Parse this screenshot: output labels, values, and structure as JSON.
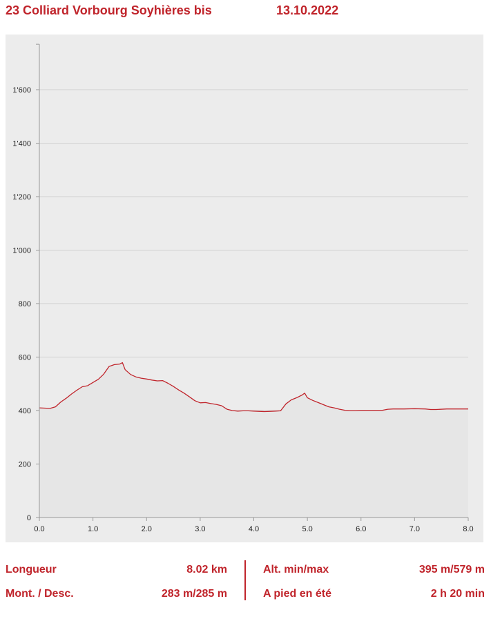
{
  "header": {
    "title": "23 Colliard Vorbourg Soyhières bis",
    "date": "13.10.2022"
  },
  "colors": {
    "accent": "#c0242b",
    "line": "#c0242b",
    "fill": "#e6e6e6",
    "panel": "#ececec",
    "grid": "#d0d0d0"
  },
  "chart_data": {
    "type": "area",
    "title": "",
    "xlabel": "",
    "ylabel": "",
    "xlim": [
      0,
      8
    ],
    "ylim": [
      0,
      1770
    ],
    "grid": true,
    "x_ticks": [
      "0.0",
      "1.0",
      "2.0",
      "3.0",
      "4.0",
      "5.0",
      "6.0",
      "7.0",
      "8.0"
    ],
    "y_ticks": [
      "0",
      "200",
      "400",
      "600",
      "800",
      "1'000",
      "1'200",
      "1'400",
      "1'600"
    ],
    "x_tick_values": [
      0,
      1,
      2,
      3,
      4,
      5,
      6,
      7,
      8
    ],
    "y_tick_values": [
      0,
      200,
      400,
      600,
      800,
      1000,
      1200,
      1400,
      1600
    ],
    "series": [
      {
        "x": [
          0.0,
          0.1,
          0.2,
          0.3,
          0.4,
          0.5,
          0.6,
          0.7,
          0.8,
          0.9,
          1.0,
          1.1,
          1.2,
          1.3,
          1.4,
          1.5,
          1.55,
          1.6,
          1.7,
          1.8,
          1.9,
          2.0,
          2.1,
          2.2,
          2.3,
          2.4,
          2.5,
          2.6,
          2.7,
          2.8,
          2.9,
          3.0,
          3.1,
          3.2,
          3.3,
          3.4,
          3.5,
          3.6,
          3.7,
          3.8,
          3.9,
          4.0,
          4.1,
          4.2,
          4.3,
          4.4,
          4.5,
          4.6,
          4.7,
          4.8,
          4.9,
          4.95,
          5.0,
          5.1,
          5.2,
          5.3,
          5.4,
          5.5,
          5.6,
          5.7,
          5.8,
          5.9,
          6.0,
          6.2,
          6.4,
          6.5,
          6.6,
          6.8,
          7.0,
          7.2,
          7.3,
          7.4,
          7.6,
          7.8,
          8.0
        ],
        "values": [
          410,
          409,
          408,
          414,
          432,
          446,
          462,
          476,
          489,
          493,
          505,
          517,
          536,
          565,
          572,
          574,
          579,
          553,
          535,
          526,
          521,
          518,
          514,
          511,
          512,
          502,
          490,
          477,
          465,
          451,
          437,
          429,
          430,
          426,
          423,
          418,
          405,
          400,
          398,
          399,
          399,
          398,
          397,
          396,
          397,
          398,
          399,
          425,
          440,
          448,
          458,
          465,
          448,
          438,
          430,
          422,
          414,
          410,
          405,
          401,
          400,
          400,
          401,
          401,
          401,
          405,
          406,
          406,
          407,
          406,
          404,
          404,
          406,
          406,
          406
        ]
      }
    ]
  },
  "stats": {
    "length_label": "Longueur",
    "length_value": "8.02 km",
    "alt_label": "Alt. min/max",
    "alt_value": "395 m/579 m",
    "updown_label": "Mont. / Desc.",
    "updown_value": "283 m/285 m",
    "time_label": "A pied en été",
    "time_value": "2 h 20 min"
  }
}
